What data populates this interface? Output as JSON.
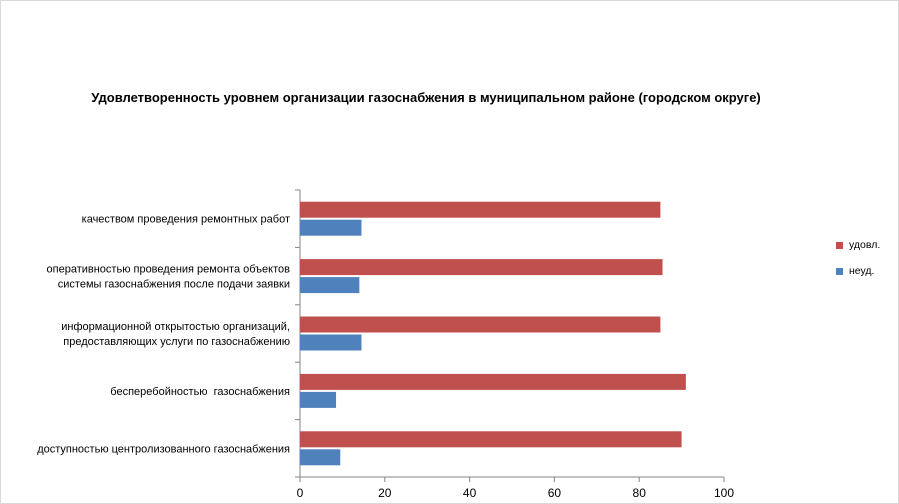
{
  "chart_data": {
    "type": "bar",
    "orientation": "horizontal",
    "title": "Удовлетворенность уровнем организации газоснабжения в муниципальном районе (городском округе)",
    "categories": [
      [
        "качеством проведения ремонтных работ"
      ],
      [
        "оперативностью проведения ремонта объектов",
        "системы газоснабжения после подачи заявки"
      ],
      [
        "информационной открытостью организаций,",
        "предоставляющих услуги по газоснабжению"
      ],
      [
        "бесперебойностью  газоснабжения"
      ],
      [
        "доступностью центролизованного газоснабжения"
      ]
    ],
    "series": [
      {
        "name": "удовл.",
        "color": "#c0504d",
        "values": [
          85,
          85.5,
          85,
          91,
          90
        ]
      },
      {
        "name": "неуд.",
        "color": "#4f81bd",
        "values": [
          14.5,
          14,
          14.5,
          8.5,
          9.5
        ]
      }
    ],
    "xlim": [
      0,
      100
    ],
    "xticks": [
      0,
      20,
      40,
      60,
      80,
      100
    ],
    "grid": false,
    "legend_position": "right"
  }
}
